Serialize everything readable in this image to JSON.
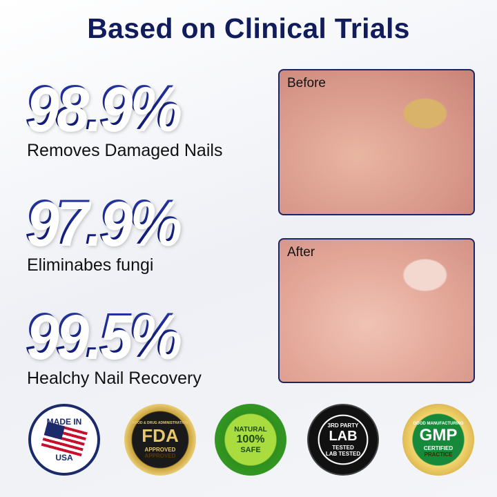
{
  "title": "Based on Clinical Trials",
  "stats": [
    {
      "value": "98.9%",
      "label": "Removes Damaged Nails"
    },
    {
      "value": "97.9%",
      "label": "Eliminabes fungi"
    },
    {
      "value": "99.5%",
      "label": "Healchy Nail Recovery"
    }
  ],
  "photos": {
    "before": "Before",
    "after": "After"
  },
  "badges": {
    "usa": {
      "top": "MADE IN",
      "bottom": "USA"
    },
    "fda": {
      "ring": "FOOD & DRUG ADMINISTRATION",
      "main": "FDA",
      "sub": "APPROVED",
      "bottom": "APPROVED"
    },
    "natural": {
      "top": "NATURAL",
      "main": "100%",
      "bottom": "SAFE"
    },
    "lab": {
      "top": "3RD PARTY",
      "main": "LAB",
      "sub": "TESTED",
      "bottom": "LAB TESTED"
    },
    "gmp": {
      "top": "GOOD MANUFACTURING",
      "main": "GMP",
      "sub": "CERTIFIED",
      "bottom": "PRACTICE"
    }
  },
  "colors": {
    "navy": "#111c5c",
    "accent": "#0f1f7a"
  }
}
